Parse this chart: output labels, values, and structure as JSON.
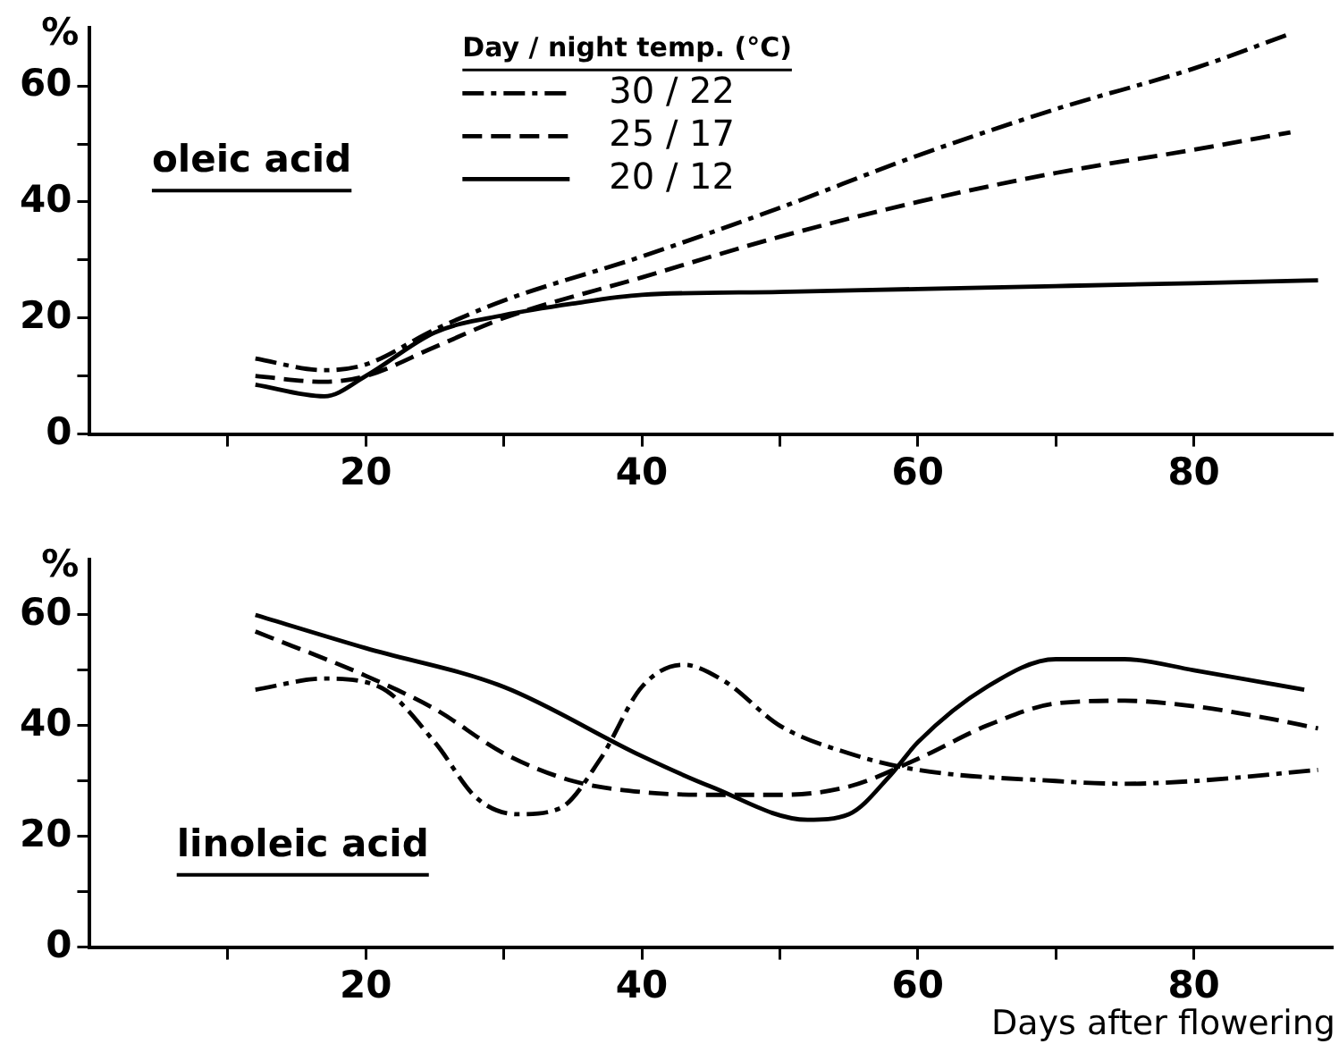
{
  "chart_data": [
    {
      "type": "line",
      "ylabel": "%",
      "annotations": [
        "oleic acid"
      ],
      "legend_title": "Day / night temp. (°C)",
      "legend": "top",
      "marker": "none",
      "xlim": [
        0,
        90
      ],
      "ylim": [
        0,
        70
      ],
      "xticks": [
        {
          "value": 10,
          "label": null
        },
        20,
        {
          "value": 30,
          "label": null
        },
        40,
        {
          "value": 50,
          "label": null
        },
        60,
        {
          "value": 70,
          "label": null
        },
        80
      ],
      "yticks": [
        0,
        {
          "value": 10,
          "label": null
        },
        20,
        {
          "value": 30,
          "label": null
        },
        40,
        {
          "value": 50,
          "label": null
        },
        60
      ],
      "series": [
        {
          "name": "30 / 22",
          "color": "#000000",
          "line_style": "dashdot",
          "x": [
            12,
            17,
            20,
            25,
            30,
            40,
            50,
            60,
            70,
            80,
            87
          ],
          "values": [
            13,
            11,
            12,
            18,
            23,
            30.6,
            39,
            48,
            56,
            63,
            69
          ]
        },
        {
          "name": "25 / 17",
          "color": "#000000",
          "line_style": "dashed",
          "x": [
            12,
            17,
            20,
            25,
            30,
            40,
            50,
            60,
            70,
            80,
            87
          ],
          "values": [
            10,
            9,
            10,
            15,
            20,
            27,
            34,
            40,
            45,
            49,
            52
          ]
        },
        {
          "name": "20 / 12",
          "color": "#000000",
          "line_style": "solid",
          "x": [
            12,
            17,
            20,
            25,
            30,
            35,
            40,
            50,
            60,
            70,
            80,
            89
          ],
          "values": [
            8.5,
            6.5,
            10,
            17.5,
            20.5,
            22.5,
            24,
            24.5,
            25,
            25.5,
            26,
            26.5
          ]
        }
      ]
    },
    {
      "type": "line",
      "ylabel": "%",
      "xlabel": "Days after flowering",
      "annotations": [
        "linoleic acid"
      ],
      "marker": "none",
      "xlim": [
        0,
        90
      ],
      "ylim": [
        0,
        70
      ],
      "xticks": [
        {
          "value": 10,
          "label": null
        },
        20,
        {
          "value": 30,
          "label": null
        },
        40,
        {
          "value": 50,
          "label": null
        },
        60,
        {
          "value": 70,
          "label": null
        },
        80
      ],
      "yticks": [
        0,
        {
          "value": 10,
          "label": null
        },
        20,
        {
          "value": 30,
          "label": null
        },
        40,
        {
          "value": 50,
          "label": null
        },
        60
      ],
      "series": [
        {
          "color": "#000000",
          "line_style": "dashdot",
          "x": [
            12,
            17,
            21,
            25,
            28,
            31,
            34,
            37,
            40,
            43,
            46,
            50,
            55,
            60,
            70,
            75,
            80,
            89
          ],
          "values": [
            46.5,
            48.5,
            47,
            37,
            27,
            24,
            25,
            34,
            47,
            51,
            48,
            40,
            35,
            32,
            30,
            29.5,
            30,
            32
          ]
        },
        {
          "color": "#000000",
          "line_style": "dashed",
          "x": [
            12,
            20,
            25,
            30,
            35,
            40,
            45,
            50,
            55,
            60,
            65,
            70,
            75,
            80,
            85,
            89
          ],
          "values": [
            57,
            49,
            43,
            35,
            30,
            28,
            27.5,
            27.5,
            29,
            34,
            40,
            44,
            44.5,
            43.5,
            41.5,
            39.5
          ]
        },
        {
          "color": "#000000",
          "line_style": "solid",
          "x": [
            12,
            20,
            30,
            40,
            45,
            52,
            55,
            58,
            60,
            65,
            70,
            75,
            80,
            88
          ],
          "values": [
            60,
            54,
            47,
            34.5,
            29,
            23,
            24,
            31,
            37,
            47,
            52,
            52,
            50,
            46.5
          ]
        }
      ]
    }
  ]
}
